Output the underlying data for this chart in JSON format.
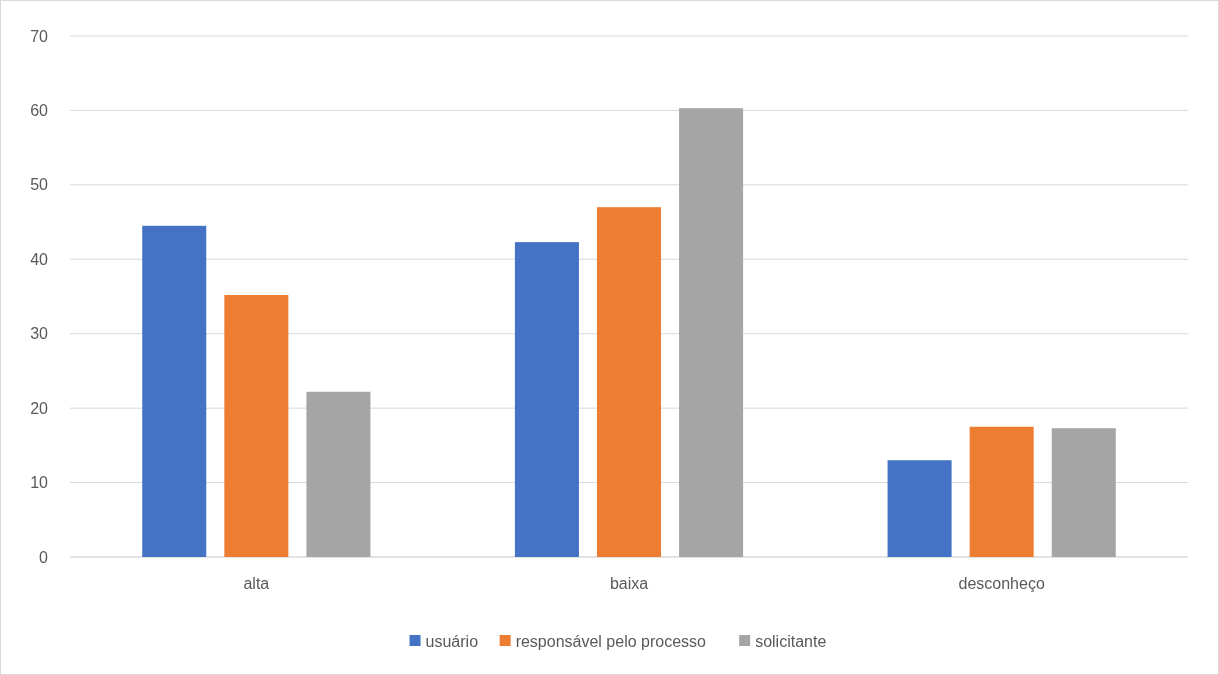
{
  "chart_data": {
    "type": "bar",
    "categories": [
      "alta",
      "baixa",
      "desconheço"
    ],
    "series": [
      {
        "name": "usuário",
        "color": "#4472c4",
        "values": [
          44.5,
          42.3,
          13.0
        ]
      },
      {
        "name": "responsável pelo processo",
        "color": "#ed7d31",
        "values": [
          35.2,
          47.0,
          17.5
        ]
      },
      {
        "name": "solicitante",
        "color": "#a5a5a5",
        "values": [
          22.2,
          60.3,
          17.3
        ]
      }
    ],
    "ylim": [
      0,
      70
    ],
    "yticks": [
      0,
      10,
      20,
      30,
      40,
      50,
      60,
      70
    ],
    "grid": "y",
    "legend": "bottom"
  }
}
